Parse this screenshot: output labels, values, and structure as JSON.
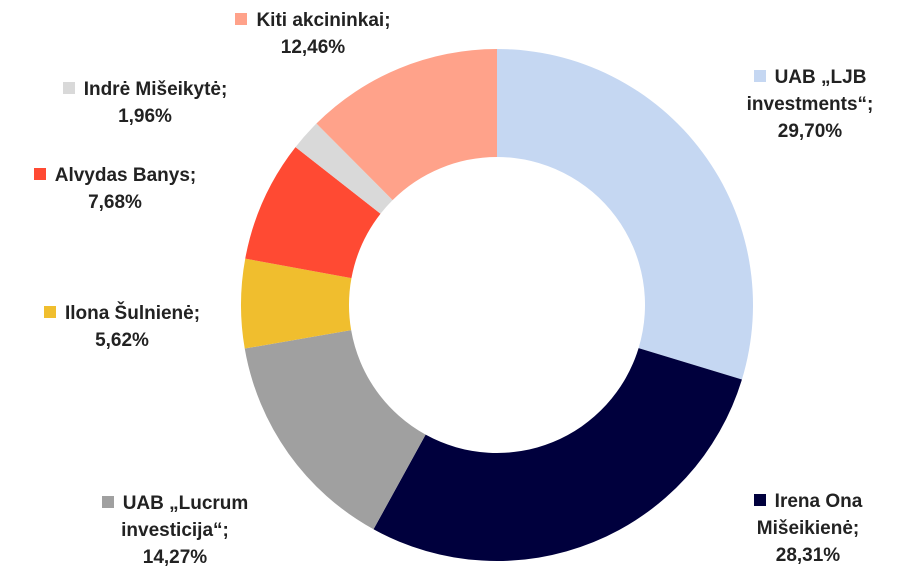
{
  "chart_data": {
    "type": "donut",
    "categories": [
      "UAB „LJB investments“;",
      "Irena Ona Mišeikienė;",
      "UAB „Lucrum investicija“;",
      "Ilona Šulnienė;",
      "Alvydas Banys;",
      "Indrė Mišeikytė;",
      "Kiti akcininkai;"
    ],
    "values": [
      29.7,
      28.31,
      14.27,
      5.62,
      7.68,
      1.96,
      12.46
    ],
    "value_labels": [
      "29,70%",
      "28,31%",
      "14,27%",
      "5,62%",
      "7,68%",
      "1,96%",
      "12,46%"
    ],
    "colors": [
      "#c5d7f2",
      "#00003d",
      "#a0a0a0",
      "#f0be2e",
      "#ff4a33",
      "#d9d9d9",
      "#ffa28a"
    ]
  }
}
